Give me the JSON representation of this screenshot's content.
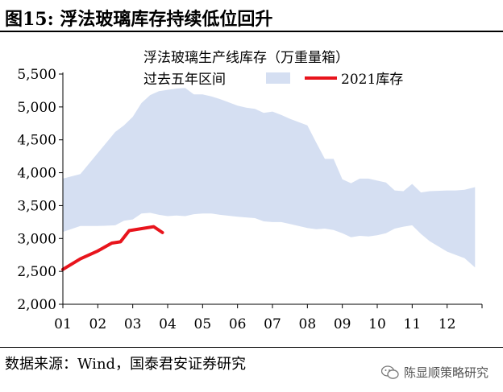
{
  "header": {
    "title": "图15: 浮法玻璃库存持续低位回升"
  },
  "chart_data": {
    "type": "area",
    "ylim": [
      2000,
      5500
    ],
    "yticks": [
      2000,
      2500,
      3000,
      3500,
      4000,
      4500,
      5000,
      5500
    ],
    "ytick_labels": [
      "2,000",
      "2,500",
      "3,000",
      "3,500",
      "4,000",
      "4,500",
      "5,000",
      "5,500"
    ],
    "xlim": [
      1,
      13
    ],
    "xticks": [
      1,
      2,
      3,
      4,
      5,
      6,
      7,
      8,
      9,
      10,
      11,
      12
    ],
    "xtick_labels": [
      "01",
      "02",
      "03",
      "04",
      "05",
      "06",
      "07",
      "08",
      "09",
      "10",
      "11",
      "12"
    ],
    "legend_title": "浮法玻璃生产线库存（万重量箱）",
    "legend_position": "top",
    "colors": {
      "band": "#d5dff2",
      "line": "#e8141c"
    },
    "series": [
      {
        "name": "过去五年区间",
        "kind": "band",
        "x": [
          1.0,
          1.5,
          2.0,
          2.5,
          2.75,
          3.0,
          3.25,
          3.5,
          3.75,
          4.0,
          4.25,
          4.5,
          4.75,
          5.0,
          5.25,
          5.5,
          6.0,
          6.25,
          6.5,
          6.75,
          7.0,
          7.25,
          7.5,
          8.0,
          8.25,
          8.5,
          8.75,
          9.0,
          9.25,
          9.5,
          9.75,
          10.0,
          10.25,
          10.5,
          10.75,
          11.0,
          11.25,
          11.5,
          12.0,
          12.25,
          12.5,
          12.8
        ],
        "upper": [
          3910,
          3980,
          4300,
          4620,
          4720,
          4850,
          5060,
          5180,
          5240,
          5260,
          5280,
          5290,
          5190,
          5190,
          5160,
          5120,
          5020,
          4990,
          4970,
          4910,
          4930,
          4880,
          4820,
          4720,
          4460,
          4210,
          4210,
          3900,
          3840,
          3910,
          3910,
          3880,
          3850,
          3730,
          3720,
          3830,
          3700,
          3720,
          3730,
          3730,
          3740,
          3780
        ],
        "lower": [
          3100,
          3190,
          3190,
          3200,
          3270,
          3290,
          3380,
          3390,
          3360,
          3340,
          3350,
          3340,
          3370,
          3380,
          3380,
          3360,
          3330,
          3320,
          3310,
          3260,
          3250,
          3250,
          3220,
          3160,
          3140,
          3150,
          3130,
          3080,
          3020,
          3040,
          3030,
          3050,
          3080,
          3150,
          3180,
          3200,
          3070,
          2960,
          2800,
          2750,
          2700,
          2560
        ]
      },
      {
        "name": "2021库存",
        "kind": "line",
        "x": [
          1.0,
          1.5,
          2.0,
          2.4,
          2.65,
          2.9,
          3.6,
          3.85
        ],
        "values": [
          2530,
          2690,
          2810,
          2930,
          2950,
          3120,
          3180,
          3090
        ]
      }
    ]
  },
  "footer": {
    "source": "数据来源：Wind，国泰君安证券研究",
    "watermark": "陈显顺策略研究",
    "watermark_icon": "wechat-icon"
  }
}
